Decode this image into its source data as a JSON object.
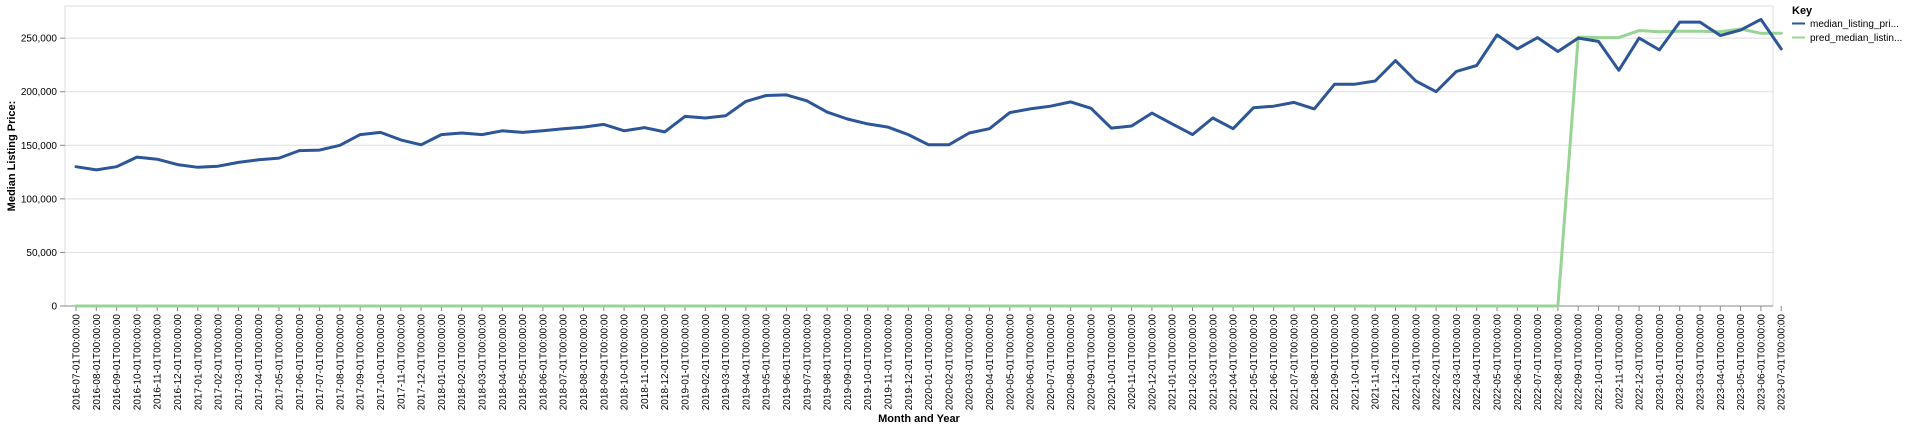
{
  "chart_data": {
    "type": "line",
    "xlabel": "Month and Year",
    "ylabel": "Median Listing Price:",
    "ylim": [
      0,
      280000
    ],
    "y_ticks": [
      0,
      50000,
      100000,
      150000,
      200000,
      250000
    ],
    "y_tick_labels": [
      "0",
      "50,000",
      "100,000",
      "150,000",
      "200,000",
      "250,000"
    ],
    "grid": true,
    "legend": {
      "title": "Key",
      "placement": "top-right"
    },
    "x": [
      "2016-07-01T00:00:00",
      "2016-08-01T00:00:00",
      "2016-09-01T00:00:00",
      "2016-10-01T00:00:00",
      "2016-11-01T00:00:00",
      "2016-12-01T00:00:00",
      "2017-01-01T00:00:00",
      "2017-02-01T00:00:00",
      "2017-03-01T00:00:00",
      "2017-04-01T00:00:00",
      "2017-05-01T00:00:00",
      "2017-06-01T00:00:00",
      "2017-07-01T00:00:00",
      "2017-08-01T00:00:00",
      "2017-09-01T00:00:00",
      "2017-10-01T00:00:00",
      "2017-11-01T00:00:00",
      "2017-12-01T00:00:00",
      "2018-01-01T00:00:00",
      "2018-02-01T00:00:00",
      "2018-03-01T00:00:00",
      "2018-04-01T00:00:00",
      "2018-05-01T00:00:00",
      "2018-06-01T00:00:00",
      "2018-07-01T00:00:00",
      "2018-08-01T00:00:00",
      "2018-09-01T00:00:00",
      "2018-10-01T00:00:00",
      "2018-11-01T00:00:00",
      "2018-12-01T00:00:00",
      "2019-01-01T00:00:00",
      "2019-02-01T00:00:00",
      "2019-03-01T00:00:00",
      "2019-04-01T00:00:00",
      "2019-05-01T00:00:00",
      "2019-06-01T00:00:00",
      "2019-07-01T00:00:00",
      "2019-08-01T00:00:00",
      "2019-09-01T00:00:00",
      "2019-10-01T00:00:00",
      "2019-11-01T00:00:00",
      "2019-12-01T00:00:00",
      "2020-01-01T00:00:00",
      "2020-02-01T00:00:00",
      "2020-03-01T00:00:00",
      "2020-04-01T00:00:00",
      "2020-05-01T00:00:00",
      "2020-06-01T00:00:00",
      "2020-07-01T00:00:00",
      "2020-08-01T00:00:00",
      "2020-09-01T00:00:00",
      "2020-10-01T00:00:00",
      "2020-11-01T00:00:00",
      "2020-12-01T00:00:00",
      "2021-01-01T00:00:00",
      "2021-02-01T00:00:00",
      "2021-03-01T00:00:00",
      "2021-04-01T00:00:00",
      "2021-05-01T00:00:00",
      "2021-06-01T00:00:00",
      "2021-07-01T00:00:00",
      "2021-08-01T00:00:00",
      "2021-09-01T00:00:00",
      "2021-10-01T00:00:00",
      "2021-11-01T00:00:00",
      "2021-12-01T00:00:00",
      "2022-01-01T00:00:00",
      "2022-02-01T00:00:00",
      "2022-03-01T00:00:00",
      "2022-04-01T00:00:00",
      "2022-05-01T00:00:00",
      "2022-06-01T00:00:00",
      "2022-07-01T00:00:00",
      "2022-08-01T00:00:00",
      "2022-09-01T00:00:00",
      "2022-10-01T00:00:00",
      "2022-11-01T00:00:00",
      "2022-12-01T00:00:00",
      "2023-01-01T00:00:00",
      "2023-02-01T00:00:00",
      "2023-03-01T00:00:00",
      "2023-04-01T00:00:00",
      "2023-05-01T00:00:00",
      "2023-06-01T00:00:00",
      "2023-07-01T00:00:00"
    ],
    "series": [
      {
        "name": "median_listing_pri...",
        "color": "#2c5697",
        "values": [
          130000,
          127000,
          130000,
          139000,
          137000,
          132000,
          129500,
          130500,
          134000,
          136500,
          138000,
          145000,
          145500,
          150000,
          160000,
          162000,
          155000,
          150500,
          160000,
          161500,
          160000,
          163500,
          162000,
          163500,
          165500,
          167000,
          169500,
          163500,
          166500,
          162500,
          177000,
          175500,
          177500,
          191000,
          196500,
          197000,
          191500,
          181000,
          174500,
          170000,
          167000,
          160000,
          150500,
          150500,
          161500,
          165500,
          180500,
          184000,
          186500,
          190500,
          184500,
          166000,
          168000,
          180000,
          170000,
          160000,
          175500,
          165500,
          185000,
          186500,
          190000,
          184000,
          207000,
          207000,
          210000,
          229000,
          210000,
          200000,
          219000,
          224500,
          253000,
          240000,
          250500,
          237500,
          250000,
          247000,
          220000,
          250000,
          239000,
          265000,
          265000,
          252500,
          257500,
          267500,
          240000
        ]
      },
      {
        "name": "pred_median_listin...",
        "color": "#98d493",
        "values": [
          0,
          0,
          0,
          0,
          0,
          0,
          0,
          0,
          0,
          0,
          0,
          0,
          0,
          0,
          0,
          0,
          0,
          0,
          0,
          0,
          0,
          0,
          0,
          0,
          0,
          0,
          0,
          0,
          0,
          0,
          0,
          0,
          0,
          0,
          0,
          0,
          0,
          0,
          0,
          0,
          0,
          0,
          0,
          0,
          0,
          0,
          0,
          0,
          0,
          0,
          0,
          0,
          0,
          0,
          0,
          0,
          0,
          0,
          0,
          0,
          0,
          0,
          0,
          0,
          0,
          0,
          0,
          0,
          0,
          0,
          0,
          0,
          0,
          0,
          251000,
          250500,
          250500,
          257000,
          256000,
          256500,
          256500,
          256000,
          258500,
          254500,
          254500
        ]
      }
    ]
  }
}
